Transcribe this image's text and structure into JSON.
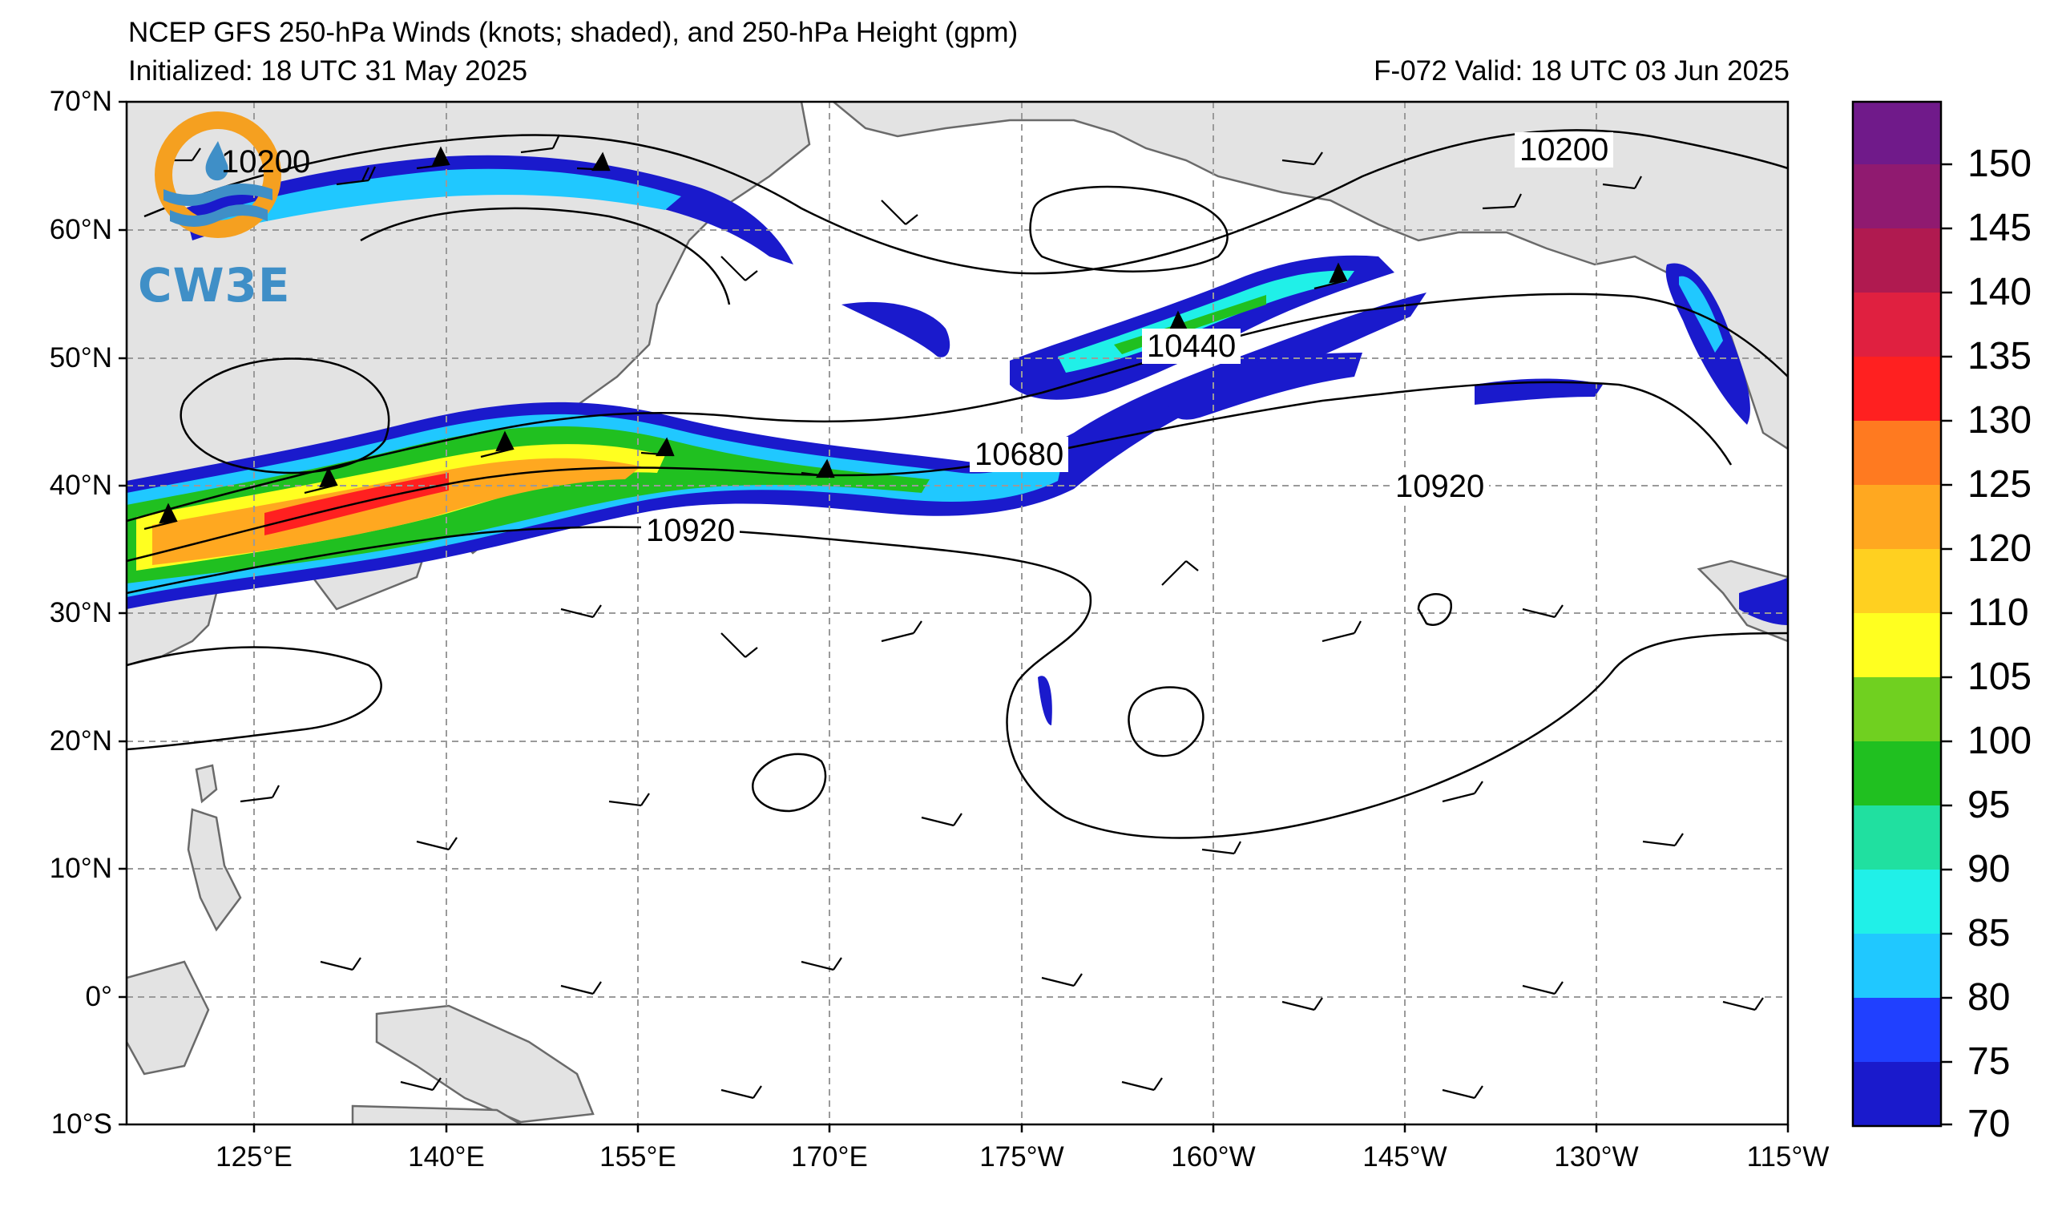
{
  "header": {
    "title": "NCEP GFS 250-hPa Winds (knots; shaded), and 250-hPa Height (gpm)",
    "initialized": "Initialized: 18 UTC 31 May 2025",
    "valid": "F-072  Valid: 18 UTC 03 Jun 2025"
  },
  "logo": {
    "text": "CW3E",
    "icon": "cw3e-logo-icon"
  },
  "axes": {
    "lat_labels": [
      "70°N",
      "60°N",
      "50°N",
      "40°N",
      "30°N",
      "20°N",
      "10°N",
      "0°",
      "10°S"
    ],
    "lon_labels": [
      "125°E",
      "140°E",
      "155°E",
      "170°E",
      "175°W",
      "160°W",
      "145°W",
      "130°W",
      "115°W"
    ]
  },
  "contour_labels": [
    "10200",
    "10440",
    "10680",
    "10920",
    "10920",
    "10200"
  ],
  "colorbar": {
    "ticks": [
      "150",
      "145",
      "140",
      "135",
      "130",
      "125",
      "120",
      "110",
      "105",
      "100",
      "95",
      "90",
      "85",
      "80",
      "75",
      "70"
    ],
    "colors": [
      "#1a1acc",
      "#2040ff",
      "#20c8ff",
      "#20f0e8",
      "#20e0a0",
      "#20c020",
      "#70d020",
      "#ffff20",
      "#ffd020",
      "#ffa820",
      "#ff7a20",
      "#ff2020",
      "#e02040",
      "#b01a50",
      "#901a70",
      "#701a8a"
    ]
  },
  "colors": {
    "land": "#e3e3e3",
    "coast": "#6a6a6a",
    "grid": "#9a9a9a"
  }
}
